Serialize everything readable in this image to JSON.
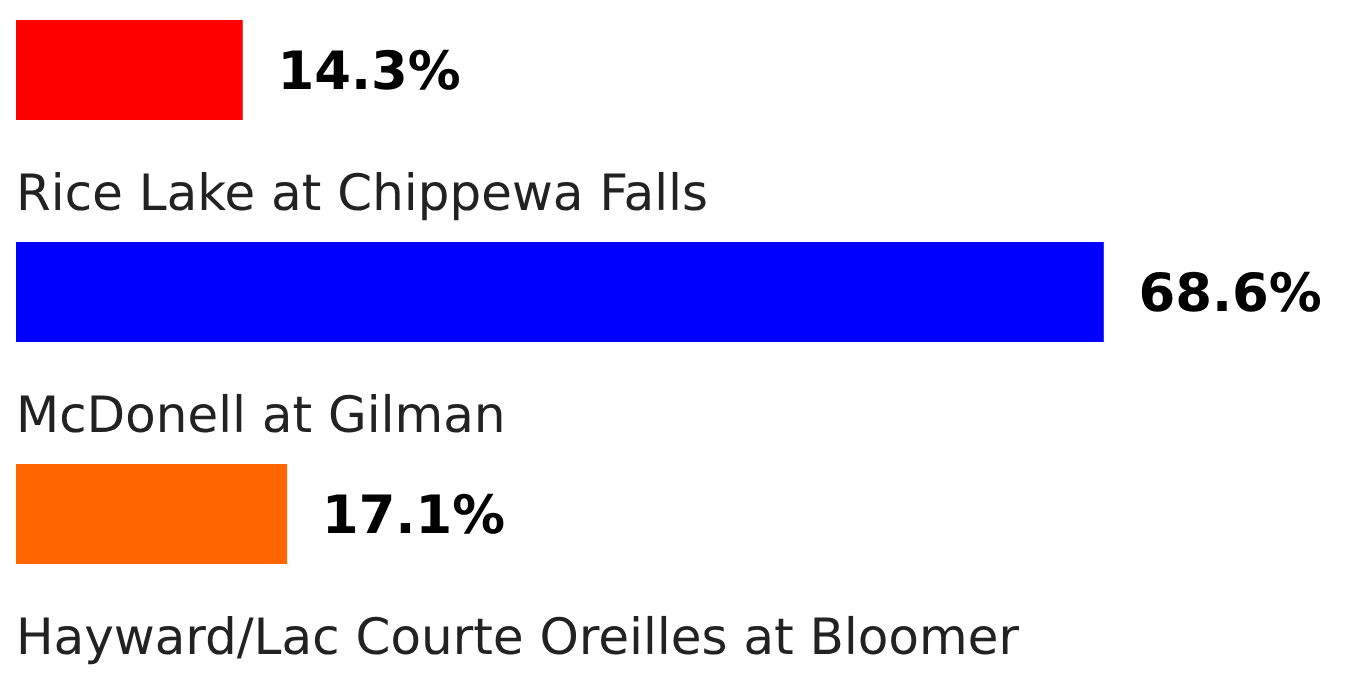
{
  "chart_data": {
    "type": "bar",
    "orientation": "horizontal",
    "categories": [
      null,
      "Rice Lake at Chippewa Falls",
      "McDonell at Gilman",
      "Hayward/Lac Courte Oreilles at Bloomer"
    ],
    "values": [
      14.3,
      68.6,
      17.1,
      null
    ],
    "colors": [
      "#ff0000",
      "#0000ff",
      "#ff6600",
      null
    ],
    "value_labels": [
      "14.3%",
      "68.6%",
      "17.1%",
      null
    ]
  }
}
